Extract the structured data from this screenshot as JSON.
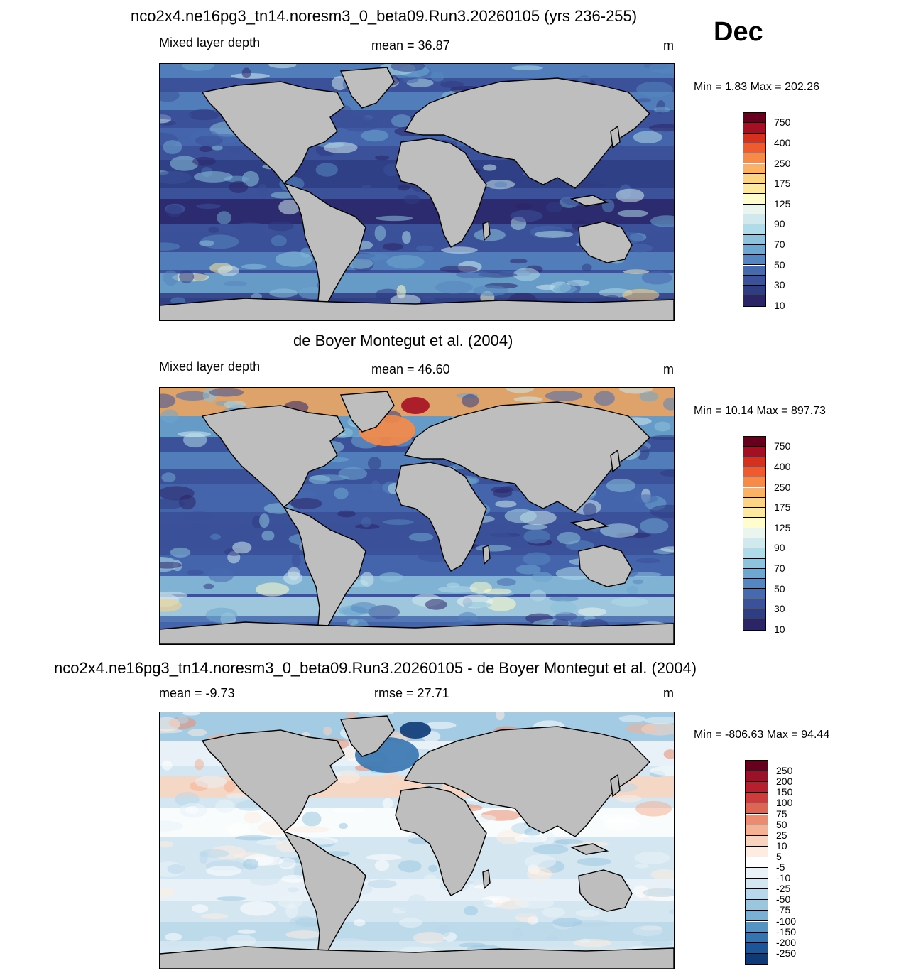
{
  "page": {
    "main_title": "nco2x4.ne16pg3_tn14.noresm3_0_beta09.Run3.20260105 (yrs 236-255)",
    "month": "Dec"
  },
  "chart_data": [
    {
      "type": "heatmap",
      "title": "nco2x4.ne16pg3_tn14.noresm3_0_beta09.Run3.20260105 (yrs 236-255)",
      "left_label": "Mixed layer depth",
      "center_label": "mean =  36.87",
      "right_label": "m",
      "minmax": "Min =   1.83 Max = 202.26",
      "colorbar": {
        "ticks": [
          "750",
          "400",
          "250",
          "175",
          "125",
          "90",
          "70",
          "50",
          "30",
          "10"
        ],
        "colors": [
          "#67001f",
          "#a50f24",
          "#d6301f",
          "#ef5a2e",
          "#f78a46",
          "#fcb262",
          "#fdd483",
          "#fee99e",
          "#fffdcc",
          "#eaf5ef",
          "#cfe9ee",
          "#b0dbe8",
          "#8dc3dd",
          "#6ea7cf",
          "#5686c0",
          "#4769ae",
          "#3b5199",
          "#2f3d83",
          "#2b2567"
        ]
      }
    },
    {
      "type": "heatmap",
      "title": "de Boyer Montegut et al. (2004)",
      "left_label": "Mixed layer depth",
      "center_label": "mean =  46.60",
      "right_label": "m",
      "minmax": "Min =  10.14 Max = 897.73",
      "colorbar": {
        "ticks": [
          "750",
          "400",
          "250",
          "175",
          "125",
          "90",
          "70",
          "50",
          "30",
          "10"
        ],
        "colors": [
          "#67001f",
          "#a50f24",
          "#d6301f",
          "#ef5a2e",
          "#f78a46",
          "#fcb262",
          "#fdd483",
          "#fee99e",
          "#fffdcc",
          "#eaf5ef",
          "#cfe9ee",
          "#b0dbe8",
          "#8dc3dd",
          "#6ea7cf",
          "#5686c0",
          "#4769ae",
          "#3b5199",
          "#2f3d83",
          "#2b2567"
        ]
      }
    },
    {
      "type": "heatmap",
      "title": "nco2x4.ne16pg3_tn14.noresm3_0_beta09.Run3.20260105 - de Boyer Montegut et al. (2004)",
      "left_label": "mean =  -9.73",
      "center_label": "rmse =  27.71",
      "right_label": "m",
      "minmax": "Min = -806.63 Max =  94.44",
      "colorbar": {
        "ticks": [
          "250",
          "200",
          "150",
          "100",
          "75",
          "50",
          "25",
          "10",
          "5",
          "-5",
          "-10",
          "-25",
          "-50",
          "-75",
          "-100",
          "-150",
          "-200",
          "-250"
        ],
        "colors": [
          "#67001f",
          "#9a1228",
          "#b81f2e",
          "#cd3c3d",
          "#de6453",
          "#eb8c70",
          "#f4b194",
          "#fad3be",
          "#fdece2",
          "#ffffff",
          "#eaf2f8",
          "#d3e6f1",
          "#b9d7ea",
          "#9ac6e0",
          "#79b0d4",
          "#5593c3",
          "#3674b0",
          "#1e5596",
          "#0e3a77"
        ]
      }
    }
  ]
}
